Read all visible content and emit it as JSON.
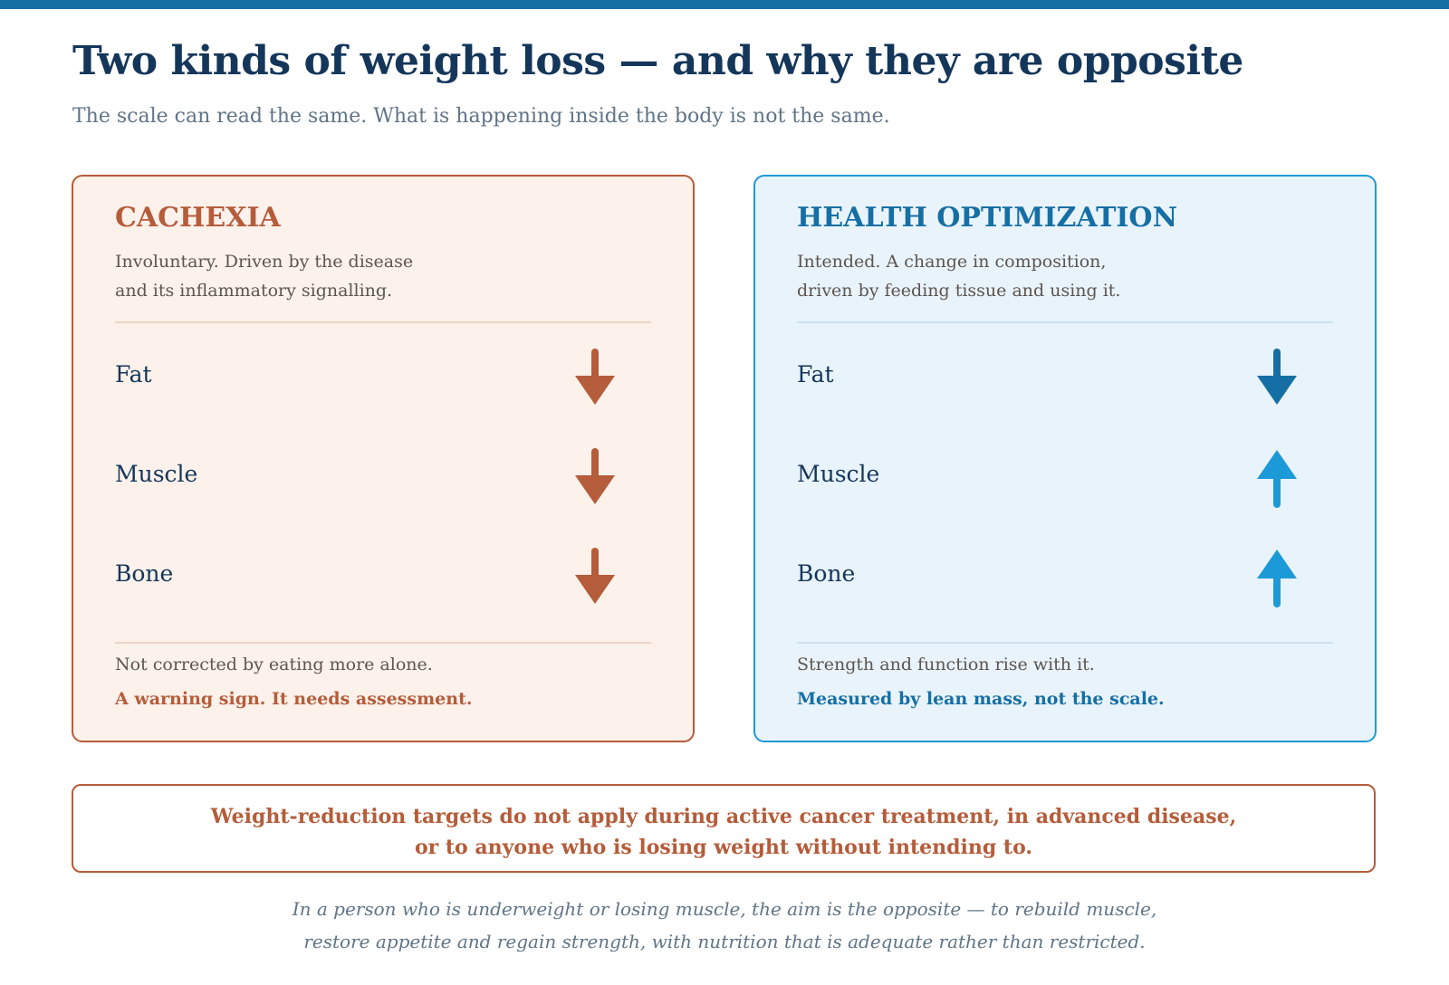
{
  "page": {
    "title": "Two kinds of weight loss — and why they are opposite",
    "subtitle": "The scale can read the same. What is happening inside the body is not the same."
  },
  "colors": {
    "top_bar": "#156fa5",
    "title": "#14365a",
    "cachexia_accent": "#b55c3a",
    "cachexia_background": "#fcf1eb",
    "optimization_accent": "#156fa5",
    "optimization_arrow_up": "#1c9ad8",
    "optimization_background": "#e9f3fb"
  },
  "cachexia": {
    "heading": "CACHEXIA",
    "description_line1": "Involuntary. Driven by the disease",
    "description_line2": "and its inflammatory signalling.",
    "rows": [
      {
        "label": "Fat",
        "direction": "down",
        "icon": "arrow-down-icon"
      },
      {
        "label": "Muscle",
        "direction": "down",
        "icon": "arrow-down-icon"
      },
      {
        "label": "Bone",
        "direction": "down",
        "icon": "arrow-down-icon"
      }
    ],
    "footer_note": "Not corrected by eating more alone.",
    "footer_emphasis": "A warning sign. It needs assessment."
  },
  "optimization": {
    "heading": "HEALTH OPTIMIZATION",
    "description_line1": "Intended. A change in composition,",
    "description_line2": "driven by feeding tissue and using it.",
    "rows": [
      {
        "label": "Fat",
        "direction": "down",
        "icon": "arrow-down-icon"
      },
      {
        "label": "Muscle",
        "direction": "up",
        "icon": "arrow-up-icon"
      },
      {
        "label": "Bone",
        "direction": "up",
        "icon": "arrow-up-icon"
      }
    ],
    "footer_note": "Strength and function rise with it.",
    "footer_emphasis": "Measured by lean mass, not the scale."
  },
  "warning": {
    "line1": "Weight-reduction targets do not apply during active cancer treatment, in advanced disease,",
    "line2": "or to anyone who is losing weight without intending to."
  },
  "closing": {
    "line1": "In a person who is underweight or losing muscle, the aim is the opposite — to rebuild muscle,",
    "line2": "restore appetite and regain strength, with nutrition that is adequate rather than restricted."
  }
}
